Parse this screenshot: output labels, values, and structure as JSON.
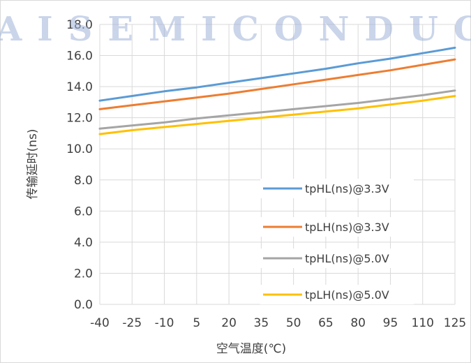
{
  "chart_data": {
    "type": "line",
    "title": "",
    "xlabel": "空气温度(℃)",
    "ylabel": "传输延时(ns)",
    "categories": [
      "-40",
      "-25",
      "-10",
      "5",
      "20",
      "35",
      "50",
      "65",
      "80",
      "95",
      "110",
      "125"
    ],
    "x": [
      -40,
      -25,
      -10,
      5,
      20,
      35,
      50,
      65,
      80,
      95,
      110,
      125
    ],
    "ylim": [
      0,
      18
    ],
    "yticks": [
      "0.0",
      "2.0",
      "4.0",
      "6.0",
      "8.0",
      "10.0",
      "12.0",
      "14.0",
      "16.0",
      "18.0"
    ],
    "grid": true,
    "legend_position": "right",
    "series": [
      {
        "name": "tpHL(ns)@3.3V",
        "color": "#5b9bd5",
        "values": [
          13.1,
          13.4,
          13.7,
          13.95,
          14.25,
          14.55,
          14.85,
          15.15,
          15.5,
          15.8,
          16.15,
          16.5
        ]
      },
      {
        "name": "tpLH(ns)@3.3V",
        "color": "#ed7d31",
        "values": [
          12.55,
          12.8,
          13.05,
          13.3,
          13.55,
          13.85,
          14.15,
          14.45,
          14.75,
          15.05,
          15.4,
          15.75
        ]
      },
      {
        "name": "tpHL(ns)@5.0V",
        "color": "#a5a5a5",
        "values": [
          11.3,
          11.5,
          11.7,
          11.95,
          12.15,
          12.35,
          12.55,
          12.75,
          12.95,
          13.2,
          13.45,
          13.75
        ]
      },
      {
        "name": "tpLH(ns)@5.0V",
        "color": "#ffc000",
        "values": [
          10.95,
          11.2,
          11.4,
          11.6,
          11.8,
          12.0,
          12.2,
          12.4,
          12.6,
          12.85,
          13.1,
          13.4
        ]
      }
    ]
  },
  "watermark": {
    "text": "AISEMICONDUCTOR"
  }
}
